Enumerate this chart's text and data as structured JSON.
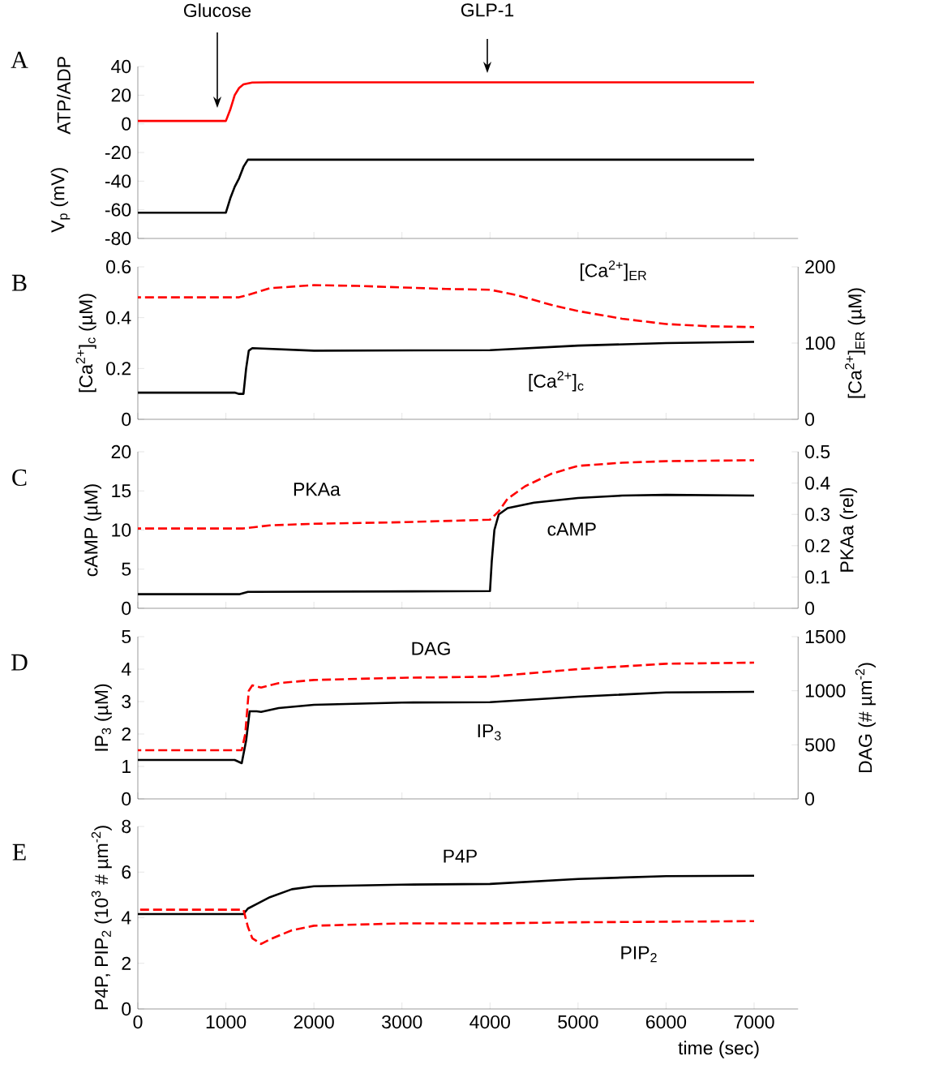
{
  "chart_data": [
    {
      "type": "line",
      "title": "A",
      "ylabel": "ATP/ADP",
      "xlim": [
        0,
        7500
      ],
      "xticks": [
        0,
        1000,
        2000,
        3000,
        4000,
        5000,
        6000,
        7000
      ],
      "ylim": [
        -80,
        40
      ],
      "yticks": [
        -80,
        -60,
        -40,
        -20,
        0,
        20,
        40
      ],
      "tick_labels": "y",
      "annotations": [
        "Glucose",
        "GLP-1"
      ],
      "series": [
        {
          "color": "#ff0000",
          "line_style": "solid",
          "x": [
            0,
            1000,
            1050,
            1100,
            1150,
            1200,
            1300,
            1500,
            7000
          ],
          "values": [
            2,
            2,
            10,
            20,
            25,
            27.5,
            28.8,
            29,
            29
          ]
        },
        {
          "name": "V$_{p}$ (mV)",
          "color": "#000000",
          "line_style": "solid",
          "x": [
            0,
            1000,
            1050,
            1100,
            1150,
            1200,
            1250,
            7000
          ],
          "values": [
            -62,
            -62,
            -52,
            -44,
            -38,
            -30,
            -25,
            -25
          ]
        }
      ]
    },
    {
      "type": "line",
      "title": "B",
      "ylabel": "[Ca$^{2+}$]$_{c}$ (µM)",
      "y2label": "[Ca$^{2+}$]$_{ER}$ (µM)",
      "xlim": [
        0,
        7500
      ],
      "xticks": [
        0,
        1000,
        2000,
        3000,
        4000,
        5000,
        6000,
        7000
      ],
      "ylim": [
        0,
        0.6
      ],
      "yticks": [
        0,
        0.2,
        0.4,
        0.6
      ],
      "y2lim": [
        0,
        200
      ],
      "y2ticks": [
        0,
        100,
        200
      ],
      "tick_labels": "y",
      "series": [
        {
          "name": "[Ca$^{2+}$]$_{ER}$",
          "axis": "y2",
          "color": "#ff0000",
          "line_style": "dashed",
          "x": [
            0,
            1150,
            1250,
            1500,
            2000,
            2500,
            3000,
            3500,
            4000,
            4300,
            4700,
            5000,
            5500,
            6000,
            6500,
            7000
          ],
          "values": [
            160,
            160,
            163,
            172,
            176,
            175,
            173,
            171,
            170,
            163,
            150,
            142,
            132,
            125,
            122,
            121
          ]
        },
        {
          "name": "[Ca$^{2+}$]$_{c}$",
          "color": "#000000",
          "line_style": "solid",
          "x": [
            0,
            1100,
            1150,
            1200,
            1230,
            1260,
            1300,
            2000,
            4000,
            5000,
            6000,
            7000
          ],
          "values": [
            0.105,
            0.105,
            0.1,
            0.1,
            0.2,
            0.27,
            0.28,
            0.27,
            0.272,
            0.29,
            0.3,
            0.305
          ]
        }
      ]
    },
    {
      "type": "line",
      "title": "C",
      "ylabel": "cAMP (µM)",
      "y2label": "PKAa (rel)",
      "xlim": [
        0,
        7500
      ],
      "xticks": [
        0,
        1000,
        2000,
        3000,
        4000,
        5000,
        6000,
        7000
      ],
      "ylim": [
        0,
        20
      ],
      "yticks": [
        0,
        5,
        10,
        15,
        20
      ],
      "y2lim": [
        0,
        0.5
      ],
      "y2ticks": [
        0,
        0.1,
        0.2,
        0.3,
        0.4,
        0.5
      ],
      "tick_labels": "y",
      "series": [
        {
          "name": "PKAa",
          "axis": "y2",
          "color": "#ff0000",
          "line_style": "dashed",
          "x": [
            0,
            1200,
            1500,
            2000,
            3000,
            4000,
            4100,
            4200,
            4400,
            4700,
            5000,
            5500,
            6000,
            7000
          ],
          "values": [
            0.255,
            0.255,
            0.265,
            0.27,
            0.275,
            0.283,
            0.31,
            0.35,
            0.39,
            0.43,
            0.455,
            0.465,
            0.47,
            0.473
          ]
        },
        {
          "name": "cAMP",
          "color": "#000000",
          "line_style": "solid",
          "x": [
            0,
            1150,
            1250,
            1300,
            4000,
            4020,
            4050,
            4100,
            4200,
            4500,
            5000,
            5500,
            6000,
            7000
          ],
          "values": [
            1.8,
            1.8,
            2.1,
            2.1,
            2.2,
            6,
            10,
            12,
            12.8,
            13.5,
            14.1,
            14.4,
            14.5,
            14.4
          ]
        }
      ]
    },
    {
      "type": "line",
      "title": "D",
      "ylabel": "IP$_{3}$ (µM)",
      "y2label": "DAG (# µm$^{-2}$)",
      "xlim": [
        0,
        7500
      ],
      "xticks": [
        0,
        1000,
        2000,
        3000,
        4000,
        5000,
        6000,
        7000
      ],
      "ylim": [
        0,
        5
      ],
      "yticks": [
        0,
        1,
        2,
        3,
        4,
        5
      ],
      "y2lim": [
        0,
        1500
      ],
      "y2ticks": [
        0,
        500,
        1000,
        1500
      ],
      "tick_labels": "y",
      "series": [
        {
          "name": "DAG",
          "axis": "y2",
          "color": "#ff0000",
          "line_style": "dashed",
          "x": [
            0,
            1180,
            1220,
            1260,
            1300,
            1400,
            1600,
            2000,
            3000,
            4000,
            5000,
            6000,
            7000
          ],
          "values": [
            450,
            450,
            600,
            1000,
            1050,
            1030,
            1070,
            1100,
            1120,
            1130,
            1200,
            1250,
            1260
          ]
        },
        {
          "name": "IP$_{3}$",
          "color": "#000000",
          "line_style": "solid",
          "x": [
            0,
            1100,
            1180,
            1230,
            1270,
            1350,
            1400,
            1600,
            2000,
            3000,
            4000,
            5000,
            6000,
            7000
          ],
          "values": [
            1.2,
            1.2,
            1.1,
            1.8,
            2.7,
            2.7,
            2.68,
            2.8,
            2.9,
            2.97,
            2.98,
            3.15,
            3.28,
            3.3
          ]
        }
      ]
    },
    {
      "type": "line",
      "title": "E",
      "ylabel": "P4P, PIP$_{2}$ (10$^{3}$ # µm$^{-2}$)",
      "xlabel": "time (sec)",
      "xlim": [
        0,
        7500
      ],
      "xticks": [
        0,
        1000,
        2000,
        3000,
        4000,
        5000,
        6000,
        7000
      ],
      "ylim": [
        0,
        8
      ],
      "yticks": [
        0,
        2,
        4,
        6,
        8
      ],
      "series": [
        {
          "name": "P4P",
          "color": "#000000",
          "line_style": "solid",
          "x": [
            0,
            1200,
            1250,
            1350,
            1500,
            1750,
            2000,
            3000,
            4000,
            5000,
            6000,
            7000
          ],
          "values": [
            4.16,
            4.16,
            4.4,
            4.6,
            4.9,
            5.25,
            5.38,
            5.45,
            5.48,
            5.7,
            5.82,
            5.84
          ]
        },
        {
          "name": "PIP$_{2}$",
          "color": "#ff0000",
          "line_style": "dashed",
          "x": [
            0,
            1200,
            1250,
            1300,
            1400,
            1500,
            1750,
            2000,
            3000,
            4000,
            5000,
            7000
          ],
          "values": [
            4.35,
            4.35,
            3.6,
            3.1,
            2.85,
            3.05,
            3.45,
            3.65,
            3.75,
            3.75,
            3.8,
            3.85
          ]
        }
      ]
    }
  ]
}
